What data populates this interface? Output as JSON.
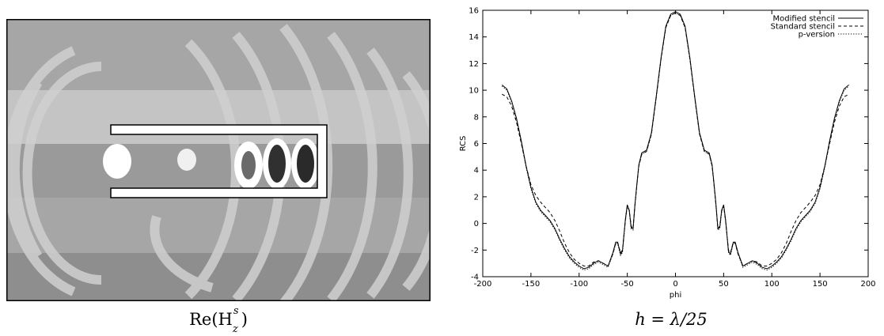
{
  "field_plot": {
    "caption_base": "Re(H",
    "caption_sub": "z",
    "caption_sup": "s",
    "caption_close": ")",
    "colors": {
      "background": "#a6a6a6",
      "light_band": "#c8c8c8",
      "mid_band": "#9a9a9a",
      "dark_band": "#8a8a8a",
      "wave": "#d2d2d2",
      "peak_dark": "#333333",
      "peak_light": "#ffffff",
      "scatterer": "#ffffff"
    }
  },
  "chart_caption": "h = λ/25",
  "chart_data": {
    "type": "line",
    "xlabel": "phi",
    "ylabel": "RCS",
    "xlim": [
      -200,
      200
    ],
    "ylim": [
      -4,
      16
    ],
    "xticks": [
      -200,
      -150,
      -100,
      -50,
      0,
      50,
      100,
      150,
      200
    ],
    "yticks": [
      -4,
      -2,
      0,
      2,
      4,
      6,
      8,
      10,
      12,
      14,
      16
    ],
    "grid": false,
    "legend_position": "top-right",
    "series": [
      {
        "name": "Modified stencil",
        "style": "solid",
        "x": [
          -180,
          -175,
          -170,
          -165,
          -160,
          -155,
          -150,
          -145,
          -140,
          -135,
          -130,
          -125,
          -120,
          -115,
          -110,
          -105,
          -100,
          -95,
          -90,
          -85,
          -80,
          -75,
          -70,
          -65,
          -62,
          -60,
          -57,
          -55,
          -52,
          -50,
          -48,
          -46,
          -44,
          -42,
          -40,
          -38,
          -35,
          -30,
          -25,
          -20,
          -15,
          -10,
          -5,
          0,
          5,
          10,
          15,
          20,
          25,
          30,
          35,
          38,
          40,
          42,
          44,
          46,
          48,
          50,
          52,
          55,
          57,
          60,
          62,
          65,
          70,
          75,
          80,
          85,
          90,
          95,
          100,
          105,
          110,
          115,
          120,
          125,
          130,
          135,
          140,
          145,
          150,
          155,
          160,
          165,
          170,
          175,
          180
        ],
        "y": [
          10.4,
          10.1,
          9.2,
          7.9,
          6.2,
          4.3,
          2.7,
          1.6,
          1.0,
          0.6,
          0.2,
          -0.4,
          -1.2,
          -1.9,
          -2.5,
          -2.9,
          -3.2,
          -3.4,
          -3.3,
          -3.0,
          -2.8,
          -3.0,
          -3.2,
          -2.2,
          -1.4,
          -1.4,
          -2.3,
          -2.1,
          0.3,
          1.4,
          1.0,
          -0.3,
          -0.4,
          1.5,
          3.0,
          4.4,
          5.3,
          5.5,
          6.8,
          9.5,
          12.4,
          14.8,
          15.7,
          15.9,
          15.7,
          14.8,
          12.4,
          9.5,
          6.8,
          5.5,
          5.3,
          4.4,
          3.0,
          1.5,
          -0.4,
          -0.3,
          1.0,
          1.4,
          0.3,
          -2.1,
          -2.3,
          -1.4,
          -1.4,
          -2.2,
          -3.2,
          -3.0,
          -2.8,
          -3.0,
          -3.3,
          -3.4,
          -3.2,
          -2.9,
          -2.5,
          -1.9,
          -1.2,
          -0.4,
          0.2,
          0.6,
          1.0,
          1.6,
          2.7,
          4.3,
          6.2,
          7.9,
          9.2,
          10.1,
          10.4
        ]
      },
      {
        "name": "Standard stencil",
        "style": "dashed",
        "x": [
          -180,
          -175,
          -170,
          -165,
          -160,
          -155,
          -150,
          -145,
          -140,
          -135,
          -130,
          -125,
          -120,
          -115,
          -110,
          -105,
          -100,
          -95,
          -90,
          -85,
          -80,
          -75,
          -70,
          -65,
          -62,
          -60,
          -57,
          -55,
          -52,
          -50,
          -48,
          -46,
          -44,
          -42,
          -40,
          -38,
          -35,
          -30,
          -25,
          -20,
          -15,
          -10,
          -5,
          0,
          5,
          10,
          15,
          20,
          25,
          30,
          35,
          38,
          40,
          42,
          44,
          46,
          48,
          50,
          52,
          55,
          57,
          60,
          62,
          65,
          70,
          75,
          80,
          85,
          90,
          95,
          100,
          105,
          110,
          115,
          120,
          125,
          130,
          135,
          140,
          145,
          150,
          155,
          160,
          165,
          170,
          175,
          180
        ],
        "y": [
          9.7,
          9.5,
          8.8,
          7.6,
          6.0,
          4.3,
          2.9,
          2.1,
          1.6,
          1.2,
          0.8,
          0.2,
          -0.6,
          -1.5,
          -2.2,
          -2.7,
          -3.0,
          -3.2,
          -3.2,
          -2.9,
          -2.8,
          -3.0,
          -3.2,
          -2.3,
          -1.5,
          -1.4,
          -2.2,
          -2.0,
          0.2,
          1.3,
          1.0,
          -0.2,
          -0.4,
          1.4,
          2.9,
          4.3,
          5.2,
          5.4,
          6.7,
          9.4,
          12.3,
          14.7,
          15.6,
          15.8,
          15.6,
          14.7,
          12.3,
          9.4,
          6.7,
          5.4,
          5.2,
          4.3,
          2.9,
          1.4,
          -0.4,
          -0.2,
          1.0,
          1.3,
          0.2,
          -2.0,
          -2.2,
          -1.4,
          -1.5,
          -2.3,
          -3.2,
          -3.0,
          -2.8,
          -2.9,
          -3.2,
          -3.2,
          -3.0,
          -2.7,
          -2.2,
          -1.5,
          -0.6,
          0.2,
          0.8,
          1.2,
          1.6,
          2.1,
          2.9,
          4.3,
          6.0,
          7.6,
          8.8,
          9.5,
          9.7
        ]
      },
      {
        "name": "p-version",
        "style": "dotted",
        "x": [
          -180,
          -175,
          -170,
          -165,
          -160,
          -155,
          -150,
          -145,
          -140,
          -135,
          -130,
          -125,
          -120,
          -115,
          -110,
          -105,
          -100,
          -95,
          -90,
          -85,
          -80,
          -75,
          -70,
          -65,
          -62,
          -60,
          -57,
          -55,
          -52,
          -50,
          -48,
          -46,
          -44,
          -42,
          -40,
          -38,
          -35,
          -30,
          -25,
          -20,
          -15,
          -10,
          -5,
          0,
          5,
          10,
          15,
          20,
          25,
          30,
          35,
          38,
          40,
          42,
          44,
          46,
          48,
          50,
          52,
          55,
          57,
          60,
          62,
          65,
          70,
          75,
          80,
          85,
          90,
          95,
          100,
          105,
          110,
          115,
          120,
          125,
          130,
          135,
          140,
          145,
          150,
          155,
          160,
          165,
          170,
          175,
          180
        ],
        "y": [
          10.3,
          10.0,
          9.1,
          7.8,
          6.1,
          4.2,
          2.6,
          1.5,
          0.9,
          0.5,
          0.1,
          -0.5,
          -1.3,
          -2.0,
          -2.6,
          -3.0,
          -3.3,
          -3.5,
          -3.4,
          -3.1,
          -2.9,
          -3.1,
          -3.3,
          -2.3,
          -1.5,
          -1.5,
          -2.4,
          -2.2,
          0.2,
          1.3,
          0.9,
          -0.4,
          -0.5,
          1.4,
          2.9,
          4.3,
          5.2,
          5.4,
          6.7,
          9.4,
          12.3,
          14.7,
          15.6,
          15.8,
          15.6,
          14.7,
          12.3,
          9.4,
          6.7,
          5.4,
          5.2,
          4.3,
          2.9,
          1.4,
          -0.5,
          -0.4,
          0.9,
          1.3,
          0.2,
          -2.2,
          -2.4,
          -1.5,
          -1.5,
          -2.3,
          -3.3,
          -3.1,
          -2.9,
          -3.1,
          -3.4,
          -3.5,
          -3.3,
          -3.0,
          -2.6,
          -2.0,
          -1.3,
          -0.5,
          0.1,
          0.5,
          0.9,
          1.5,
          2.6,
          4.2,
          6.1,
          7.8,
          9.1,
          10.0,
          10.3
        ]
      }
    ]
  }
}
